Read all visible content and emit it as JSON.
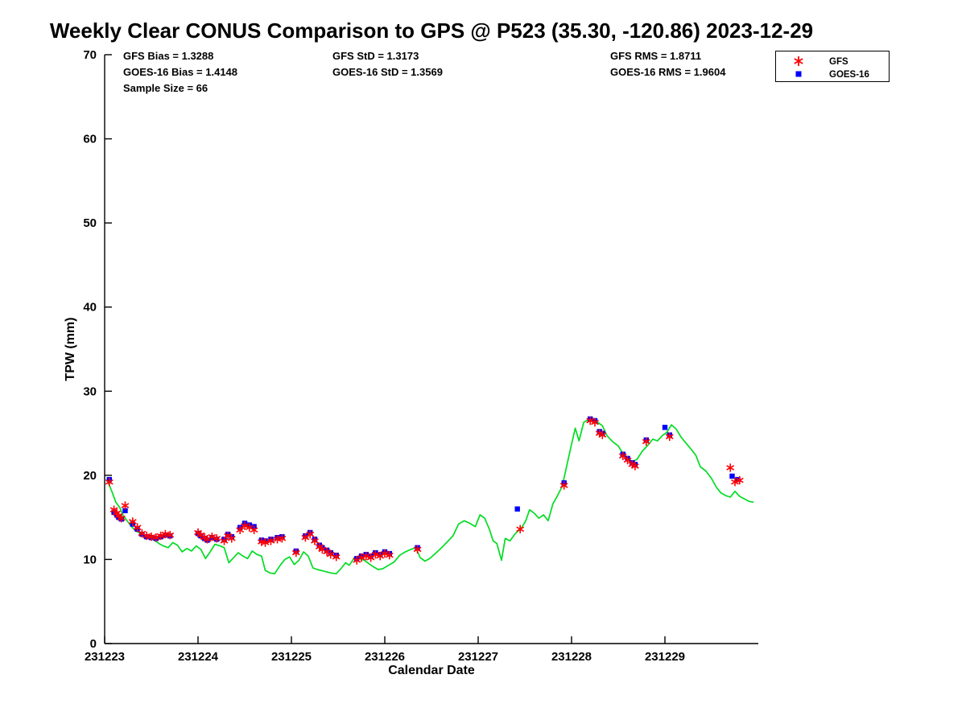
{
  "page": {
    "background": "#ffffff"
  },
  "chart_data": {
    "type": "line+scatter",
    "title": "Weekly Clear CONUS Comparison to GPS @ P523 (35.30, -120.86) 2023-12-29",
    "xlabel": "Calendar Date",
    "ylabel": "TPW (mm)",
    "xlim": [
      231223,
      231230
    ],
    "ylim": [
      0,
      70
    ],
    "xticks": [
      231223,
      231224,
      231225,
      231226,
      231227,
      231228,
      231229
    ],
    "yticks": [
      0,
      10,
      20,
      30,
      40,
      50,
      60,
      70
    ],
    "grid": false,
    "legend_position": "top-right",
    "stats": {
      "gfs_bias": "GFS Bias = 1.3288",
      "goes_bias": "GOES-16 Bias = 1.4148",
      "sample_size": "Sample Size = 66",
      "gfs_std": "GFS StD = 1.3173",
      "goes_std": "GOES-16 StD = 1.3569",
      "gfs_rms": "GFS RMS = 1.8711",
      "goes_rms": "GOES-16 RMS = 1.9604"
    },
    "legend": [
      {
        "label": "GFS",
        "marker": "asterisk",
        "color": "#ff0000"
      },
      {
        "label": "GOES-16",
        "marker": "square",
        "color": "#0000ff"
      }
    ],
    "series": [
      {
        "name": "GPS",
        "type": "line",
        "color": "#00dd22",
        "points": [
          [
            231223.04,
            19.1
          ],
          [
            231223.08,
            18.0
          ],
          [
            231223.12,
            16.8
          ],
          [
            231223.16,
            16.2
          ],
          [
            231223.2,
            15.2
          ],
          [
            231223.24,
            14.6
          ],
          [
            231223.28,
            14.0
          ],
          [
            231223.33,
            13.4
          ],
          [
            231223.4,
            13.0
          ],
          [
            231223.47,
            12.6
          ],
          [
            231223.53,
            12.3
          ],
          [
            231223.58,
            11.9
          ],
          [
            231223.63,
            11.6
          ],
          [
            231223.68,
            11.4
          ],
          [
            231223.73,
            12.0
          ],
          [
            231223.78,
            11.7
          ],
          [
            231223.83,
            10.9
          ],
          [
            231223.88,
            11.3
          ],
          [
            231223.93,
            11.0
          ],
          [
            231223.98,
            11.6
          ],
          [
            231224.03,
            11.2
          ],
          [
            231224.08,
            10.1
          ],
          [
            231224.13,
            10.9
          ],
          [
            231224.18,
            11.8
          ],
          [
            231224.24,
            11.6
          ],
          [
            231224.28,
            11.4
          ],
          [
            231224.33,
            9.6
          ],
          [
            231224.38,
            10.2
          ],
          [
            231224.43,
            10.8
          ],
          [
            231224.48,
            10.4
          ],
          [
            231224.53,
            10.1
          ],
          [
            231224.58,
            11.0
          ],
          [
            231224.63,
            10.6
          ],
          [
            231224.68,
            10.4
          ],
          [
            231224.72,
            8.7
          ],
          [
            231224.77,
            8.4
          ],
          [
            231224.82,
            8.3
          ],
          [
            231224.88,
            9.3
          ],
          [
            231224.93,
            10.0
          ],
          [
            231224.98,
            10.3
          ],
          [
            231225.03,
            9.4
          ],
          [
            231225.08,
            9.9
          ],
          [
            231225.13,
            10.9
          ],
          [
            231225.18,
            10.4
          ],
          [
            231225.23,
            9.0
          ],
          [
            231225.28,
            8.8
          ],
          [
            231225.35,
            8.6
          ],
          [
            231225.42,
            8.4
          ],
          [
            231225.48,
            8.3
          ],
          [
            231225.53,
            8.9
          ],
          [
            231225.58,
            9.6
          ],
          [
            231225.62,
            9.3
          ],
          [
            231225.68,
            10.3
          ],
          [
            231225.73,
            10.1
          ],
          [
            231225.78,
            9.9
          ],
          [
            231225.83,
            9.5
          ],
          [
            231225.88,
            9.1
          ],
          [
            231225.93,
            8.8
          ],
          [
            231225.98,
            8.9
          ],
          [
            231226.04,
            9.3
          ],
          [
            231226.1,
            9.7
          ],
          [
            231226.16,
            10.5
          ],
          [
            231226.22,
            10.9
          ],
          [
            231226.28,
            11.2
          ],
          [
            231226.33,
            11.4
          ],
          [
            231226.38,
            10.2
          ],
          [
            231226.43,
            9.8
          ],
          [
            231226.48,
            10.1
          ],
          [
            231226.53,
            10.6
          ],
          [
            231226.6,
            11.3
          ],
          [
            231226.67,
            12.1
          ],
          [
            231226.73,
            12.8
          ],
          [
            231226.79,
            14.2
          ],
          [
            231226.85,
            14.6
          ],
          [
            231226.91,
            14.3
          ],
          [
            231226.97,
            13.9
          ],
          [
            231227.02,
            15.3
          ],
          [
            231227.07,
            14.9
          ],
          [
            231227.12,
            13.6
          ],
          [
            231227.16,
            12.2
          ],
          [
            231227.2,
            11.9
          ],
          [
            231227.25,
            9.9
          ],
          [
            231227.29,
            12.5
          ],
          [
            231227.34,
            12.2
          ],
          [
            231227.4,
            13.1
          ],
          [
            231227.46,
            13.7
          ],
          [
            231227.51,
            14.6
          ],
          [
            231227.55,
            15.9
          ],
          [
            231227.6,
            15.5
          ],
          [
            231227.65,
            14.9
          ],
          [
            231227.7,
            15.3
          ],
          [
            231227.75,
            14.6
          ],
          [
            231227.8,
            16.6
          ],
          [
            231227.85,
            17.6
          ],
          [
            231227.9,
            18.7
          ],
          [
            231227.95,
            21.2
          ],
          [
            231228.0,
            23.7
          ],
          [
            231228.04,
            25.6
          ],
          [
            231228.08,
            24.1
          ],
          [
            231228.13,
            26.3
          ],
          [
            231228.18,
            26.6
          ],
          [
            231228.23,
            26.4
          ],
          [
            231228.28,
            26.3
          ],
          [
            231228.33,
            25.9
          ],
          [
            231228.38,
            24.7
          ],
          [
            231228.44,
            24.0
          ],
          [
            231228.5,
            23.5
          ],
          [
            231228.55,
            22.6
          ],
          [
            231228.6,
            22.1
          ],
          [
            231228.65,
            21.6
          ],
          [
            231228.7,
            21.9
          ],
          [
            231228.76,
            22.9
          ],
          [
            231228.82,
            23.6
          ],
          [
            231228.87,
            24.3
          ],
          [
            231228.92,
            24.1
          ],
          [
            231228.97,
            24.7
          ],
          [
            231229.02,
            25.1
          ],
          [
            231229.07,
            26.0
          ],
          [
            231229.12,
            25.5
          ],
          [
            231229.17,
            24.6
          ],
          [
            231229.22,
            23.9
          ],
          [
            231229.28,
            23.1
          ],
          [
            231229.33,
            22.4
          ],
          [
            231229.38,
            21.0
          ],
          [
            231229.44,
            20.5
          ],
          [
            231229.5,
            19.6
          ],
          [
            231229.55,
            18.6
          ],
          [
            231229.6,
            17.9
          ],
          [
            231229.65,
            17.6
          ],
          [
            231229.7,
            17.4
          ],
          [
            231229.75,
            18.1
          ],
          [
            231229.8,
            17.5
          ],
          [
            231229.85,
            17.2
          ],
          [
            231229.9,
            16.9
          ],
          [
            231229.95,
            16.8
          ]
        ]
      },
      {
        "name": "GFS",
        "type": "scatter",
        "marker": "asterisk",
        "color": "#ff0000",
        "points": [
          [
            231223.05,
            19.2
          ],
          [
            231223.1,
            15.9
          ],
          [
            231223.13,
            15.5
          ],
          [
            231223.15,
            15.2
          ],
          [
            231223.18,
            14.9
          ],
          [
            231223.22,
            16.4
          ],
          [
            231223.3,
            14.5
          ],
          [
            231223.35,
            13.8
          ],
          [
            231223.4,
            13.1
          ],
          [
            231223.45,
            12.8
          ],
          [
            231223.5,
            12.7
          ],
          [
            231223.55,
            12.6
          ],
          [
            231223.6,
            12.8
          ],
          [
            231223.65,
            13.0
          ],
          [
            231223.7,
            12.9
          ],
          [
            231224.0,
            13.2
          ],
          [
            231224.03,
            12.9
          ],
          [
            231224.07,
            12.6
          ],
          [
            231224.1,
            12.4
          ],
          [
            231224.15,
            12.7
          ],
          [
            231224.2,
            12.5
          ],
          [
            231224.28,
            12.2
          ],
          [
            231224.32,
            12.8
          ],
          [
            231224.36,
            12.5
          ],
          [
            231224.45,
            13.5
          ],
          [
            231224.5,
            14.0
          ],
          [
            231224.55,
            13.8
          ],
          [
            231224.6,
            13.5
          ],
          [
            231224.68,
            12.1
          ],
          [
            231224.72,
            12.0
          ],
          [
            231224.78,
            12.2
          ],
          [
            231224.85,
            12.4
          ],
          [
            231224.9,
            12.5
          ],
          [
            231225.05,
            10.8
          ],
          [
            231225.15,
            12.6
          ],
          [
            231225.2,
            13.0
          ],
          [
            231225.25,
            12.2
          ],
          [
            231225.3,
            11.5
          ],
          [
            231225.33,
            11.2
          ],
          [
            231225.38,
            10.9
          ],
          [
            231225.42,
            10.6
          ],
          [
            231225.48,
            10.3
          ],
          [
            231225.7,
            9.9
          ],
          [
            231225.75,
            10.2
          ],
          [
            231225.8,
            10.4
          ],
          [
            231225.85,
            10.2
          ],
          [
            231225.9,
            10.6
          ],
          [
            231225.95,
            10.4
          ],
          [
            231226.0,
            10.7
          ],
          [
            231226.05,
            10.5
          ],
          [
            231226.35,
            11.2
          ],
          [
            231227.45,
            13.6
          ],
          [
            231227.92,
            18.8
          ],
          [
            231228.2,
            26.5
          ],
          [
            231228.25,
            26.3
          ],
          [
            231228.3,
            25.0
          ],
          [
            231228.33,
            24.8
          ],
          [
            231228.55,
            22.3
          ],
          [
            231228.6,
            21.8
          ],
          [
            231228.65,
            21.3
          ],
          [
            231228.68,
            21.1
          ],
          [
            231228.8,
            24.0
          ],
          [
            231229.05,
            24.6
          ],
          [
            231229.7,
            20.9
          ],
          [
            231229.75,
            19.2
          ],
          [
            231229.8,
            19.4
          ]
        ]
      },
      {
        "name": "GOES-16",
        "type": "scatter",
        "marker": "square",
        "color": "#0000ff",
        "points": [
          [
            231223.05,
            19.5
          ],
          [
            231223.1,
            15.6
          ],
          [
            231223.13,
            15.3
          ],
          [
            231223.15,
            15.0
          ],
          [
            231223.18,
            14.8
          ],
          [
            231223.22,
            15.8
          ],
          [
            231223.3,
            14.2
          ],
          [
            231223.35,
            13.6
          ],
          [
            231223.4,
            13.0
          ],
          [
            231223.45,
            12.7
          ],
          [
            231223.5,
            12.6
          ],
          [
            231223.55,
            12.5
          ],
          [
            231223.6,
            12.7
          ],
          [
            231223.65,
            12.9
          ],
          [
            231223.7,
            12.8
          ],
          [
            231224.0,
            13.1
          ],
          [
            231224.03,
            12.8
          ],
          [
            231224.07,
            12.5
          ],
          [
            231224.1,
            12.3
          ],
          [
            231224.15,
            12.6
          ],
          [
            231224.2,
            12.4
          ],
          [
            231224.28,
            12.4
          ],
          [
            231224.32,
            13.0
          ],
          [
            231224.36,
            12.7
          ],
          [
            231224.45,
            13.8
          ],
          [
            231224.5,
            14.3
          ],
          [
            231224.55,
            14.1
          ],
          [
            231224.6,
            13.9
          ],
          [
            231224.68,
            12.3
          ],
          [
            231224.72,
            12.2
          ],
          [
            231224.78,
            12.4
          ],
          [
            231224.85,
            12.6
          ],
          [
            231224.9,
            12.7
          ],
          [
            231225.05,
            11.0
          ],
          [
            231225.15,
            12.8
          ],
          [
            231225.2,
            13.2
          ],
          [
            231225.25,
            12.4
          ],
          [
            231225.3,
            11.7
          ],
          [
            231225.33,
            11.4
          ],
          [
            231225.38,
            11.1
          ],
          [
            231225.42,
            10.8
          ],
          [
            231225.48,
            10.5
          ],
          [
            231225.7,
            10.1
          ],
          [
            231225.75,
            10.4
          ],
          [
            231225.8,
            10.6
          ],
          [
            231225.85,
            10.4
          ],
          [
            231225.9,
            10.8
          ],
          [
            231225.95,
            10.6
          ],
          [
            231226.0,
            10.9
          ],
          [
            231226.05,
            10.7
          ],
          [
            231226.35,
            11.4
          ],
          [
            231227.42,
            16.0
          ],
          [
            231227.92,
            19.1
          ],
          [
            231228.2,
            26.7
          ],
          [
            231228.25,
            26.5
          ],
          [
            231228.3,
            25.2
          ],
          [
            231228.33,
            25.0
          ],
          [
            231228.55,
            22.5
          ],
          [
            231228.6,
            22.0
          ],
          [
            231228.65,
            21.5
          ],
          [
            231228.68,
            21.3
          ],
          [
            231228.8,
            24.2
          ],
          [
            231229.0,
            25.7
          ],
          [
            231229.05,
            24.8
          ],
          [
            231229.72,
            19.9
          ],
          [
            231229.78,
            19.5
          ]
        ]
      }
    ]
  }
}
